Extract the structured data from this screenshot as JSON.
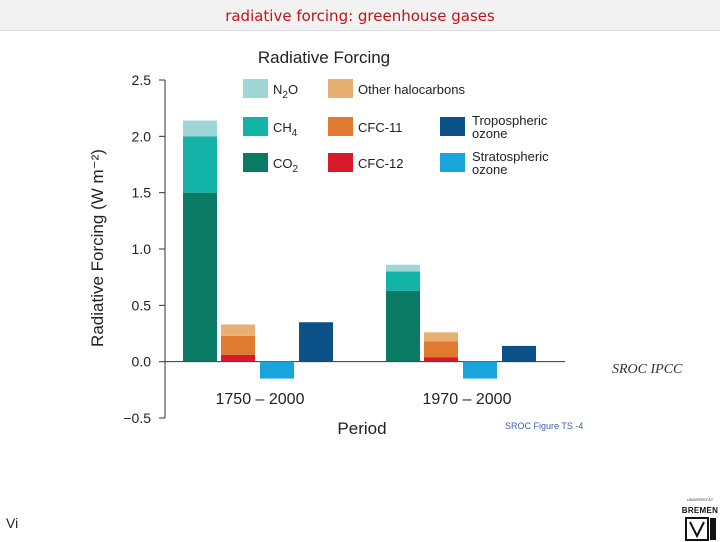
{
  "header": {
    "title": "radiative forcing: greenhouse gases"
  },
  "credit": "SROC IPCC",
  "footer": {
    "initials": "Vi"
  },
  "logo": {
    "text": "BREMEN",
    "small_text": "UNIVERSITÄT"
  },
  "colors": {
    "title": "#c0141c",
    "N2O": "#9fd6d6",
    "CH4": "#14b3a8",
    "CO2": "#0b7a64",
    "Other halocarbons": "#e8b070",
    "CFC-11": "#e07a30",
    "CFC-12": "#d8192b",
    "Tropospheric ozone": "#0c5289",
    "Stratospheric ozone": "#1aa4dc"
  },
  "chart_data": {
    "type": "bar",
    "stacked": true,
    "title": "Radiative Forcing",
    "xlabel": "Period",
    "ylabel": "Radiative Forcing (W m⁻²)",
    "ylim": [
      -0.5,
      2.5
    ],
    "yticks": [
      2.5,
      2.0,
      1.5,
      1.0,
      0.5,
      0.0,
      -0.5
    ],
    "ytick_labels": [
      "2.5",
      "2.0",
      "1.5",
      "1.0",
      "0.5",
      "0.0",
      "−0.5"
    ],
    "categories": [
      "1750 – 2000",
      "1970 – 2000"
    ],
    "groups": [
      {
        "period": "1750 – 2000",
        "bars": [
          {
            "stack": [
              {
                "name": "CO2",
                "value": 1.5
              },
              {
                "name": "CH4",
                "value": 0.5
              },
              {
                "name": "N2O",
                "value": 0.14
              }
            ]
          },
          {
            "stack": [
              {
                "name": "CFC-12",
                "value": 0.06
              },
              {
                "name": "CFC-11",
                "value": 0.17
              },
              {
                "name": "Other halocarbons",
                "value": 0.1
              }
            ]
          },
          {
            "stack": [
              {
                "name": "Stratospheric ozone",
                "value": -0.15
              }
            ]
          },
          {
            "stack": [
              {
                "name": "Tropospheric ozone",
                "value": 0.35
              }
            ]
          }
        ]
      },
      {
        "period": "1970 – 2000",
        "bars": [
          {
            "stack": [
              {
                "name": "CO2",
                "value": 0.63
              },
              {
                "name": "CH4",
                "value": 0.17
              },
              {
                "name": "N2O",
                "value": 0.06
              }
            ]
          },
          {
            "stack": [
              {
                "name": "CFC-12",
                "value": 0.04
              },
              {
                "name": "CFC-11",
                "value": 0.14
              },
              {
                "name": "Other halocarbons",
                "value": 0.08
              }
            ]
          },
          {
            "stack": [
              {
                "name": "Stratospheric ozone",
                "value": -0.15
              }
            ]
          },
          {
            "stack": [
              {
                "name": "Tropospheric ozone",
                "value": 0.14
              }
            ]
          }
        ]
      }
    ],
    "legend": [
      {
        "key": "N2O",
        "base": "N",
        "sub": "2",
        "tail": "O"
      },
      {
        "key": "Other halocarbons",
        "base": "Other halocarbons"
      },
      {
        "key": "CH4",
        "base": "CH",
        "sub": "4"
      },
      {
        "key": "CFC-11",
        "base": "CFC-11"
      },
      {
        "key": "Tropospheric ozone",
        "lines": [
          "Tropospheric",
          "ozone"
        ]
      },
      {
        "key": "CO2",
        "base": "CO",
        "sub": "2"
      },
      {
        "key": "CFC-12",
        "base": "CFC-12"
      },
      {
        "key": "Stratospheric ozone",
        "lines": [
          "Stratospheric",
          "ozone"
        ]
      }
    ],
    "legend_position": "top",
    "figure_note": "SROC Figure TS -4"
  }
}
